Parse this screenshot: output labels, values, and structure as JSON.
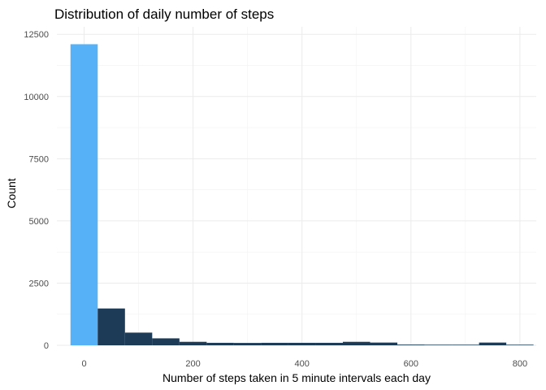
{
  "chart_data": {
    "type": "bar",
    "title": "Distribution of daily number of steps",
    "xlabel": "Number of steps taken in 5 minute intervals each day",
    "ylabel": "Count",
    "xlim": [
      -50,
      830
    ],
    "ylim": [
      0,
      12800
    ],
    "x_ticks": [
      0,
      200,
      400,
      600,
      800
    ],
    "y_ticks": [
      0,
      2500,
      5000,
      7500,
      10000,
      12500
    ],
    "grid": true,
    "bin_width": 50,
    "bins": [
      {
        "x": 0,
        "count": 12100,
        "color": "#56b1f7"
      },
      {
        "x": 50,
        "count": 1480,
        "color": "#1d3a57"
      },
      {
        "x": 100,
        "count": 510,
        "color": "#1d3a57"
      },
      {
        "x": 150,
        "count": 280,
        "color": "#1d3a57"
      },
      {
        "x": 200,
        "count": 140,
        "color": "#1d3a57"
      },
      {
        "x": 250,
        "count": 100,
        "color": "#1d3a57"
      },
      {
        "x": 300,
        "count": 95,
        "color": "#1d3a57"
      },
      {
        "x": 350,
        "count": 100,
        "color": "#1d3a57"
      },
      {
        "x": 400,
        "count": 100,
        "color": "#1d3a57"
      },
      {
        "x": 450,
        "count": 100,
        "color": "#1d3a57"
      },
      {
        "x": 500,
        "count": 140,
        "color": "#1d3a57"
      },
      {
        "x": 550,
        "count": 110,
        "color": "#1d3a57"
      },
      {
        "x": 600,
        "count": 30,
        "color": "#1d3a57"
      },
      {
        "x": 650,
        "count": 25,
        "color": "#1d3a57"
      },
      {
        "x": 700,
        "count": 25,
        "color": "#1d3a57"
      },
      {
        "x": 750,
        "count": 110,
        "color": "#1d3a57"
      },
      {
        "x": 800,
        "count": 25,
        "color": "#1d3a57"
      }
    ]
  }
}
